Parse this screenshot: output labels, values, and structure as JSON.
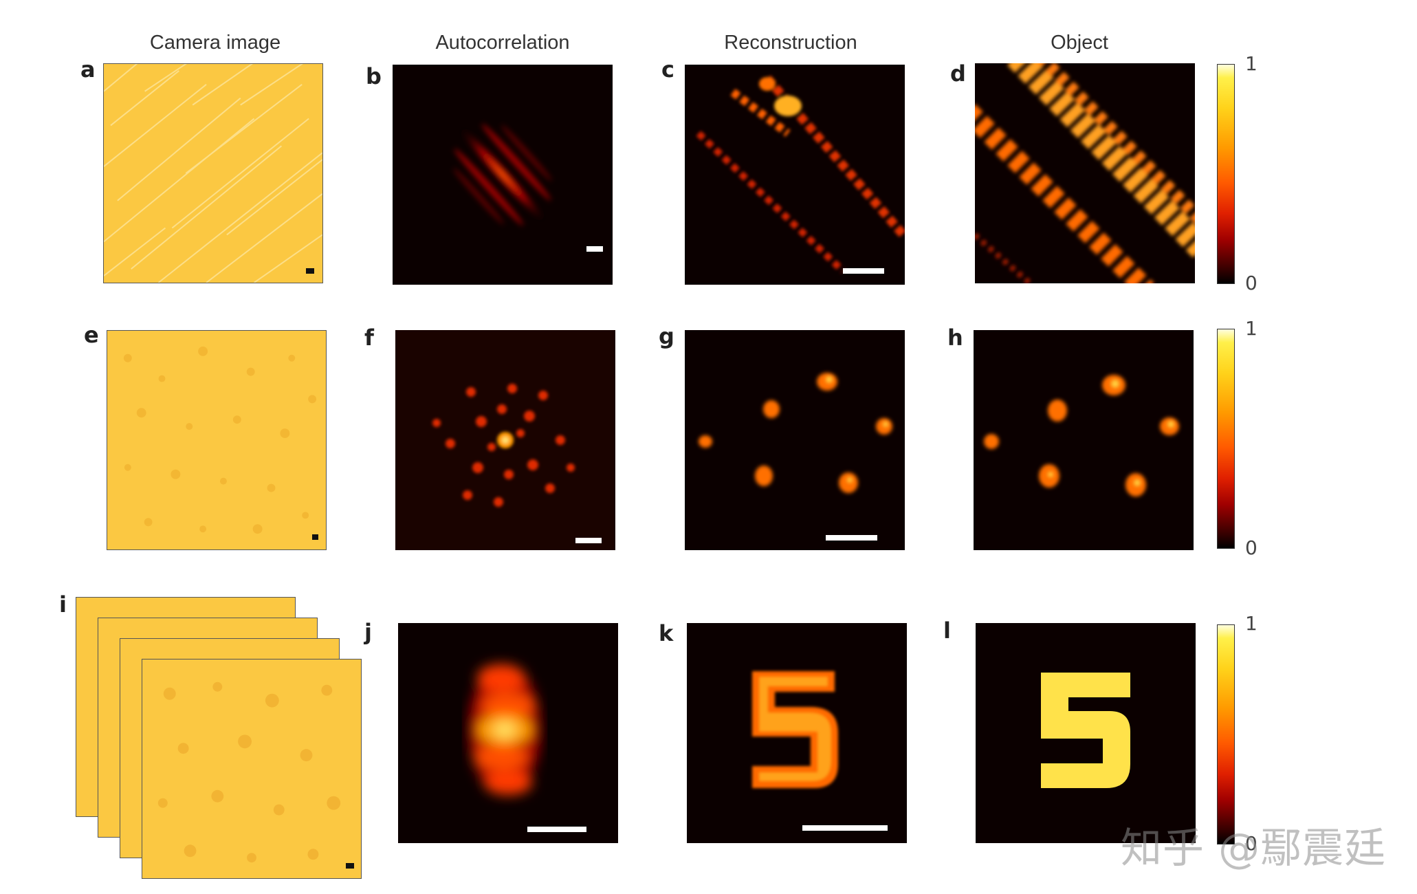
{
  "figure": {
    "column_titles": [
      "Camera image",
      "Autocorrelation",
      "Reconstruction",
      "Object"
    ],
    "panel_letters": [
      "a",
      "b",
      "c",
      "d",
      "e",
      "f",
      "g",
      "h",
      "i",
      "j",
      "k",
      "l"
    ],
    "colorbar": {
      "max_label": "1",
      "min_label": "0",
      "colormap": "hot"
    },
    "watermark": "知乎 @鄢震廷",
    "colors": {
      "camera_fill": "#fbc842",
      "dark_bg": "#0b0000",
      "hot_mid": "#ff5a00",
      "hot_high": "#ffd21a"
    }
  }
}
